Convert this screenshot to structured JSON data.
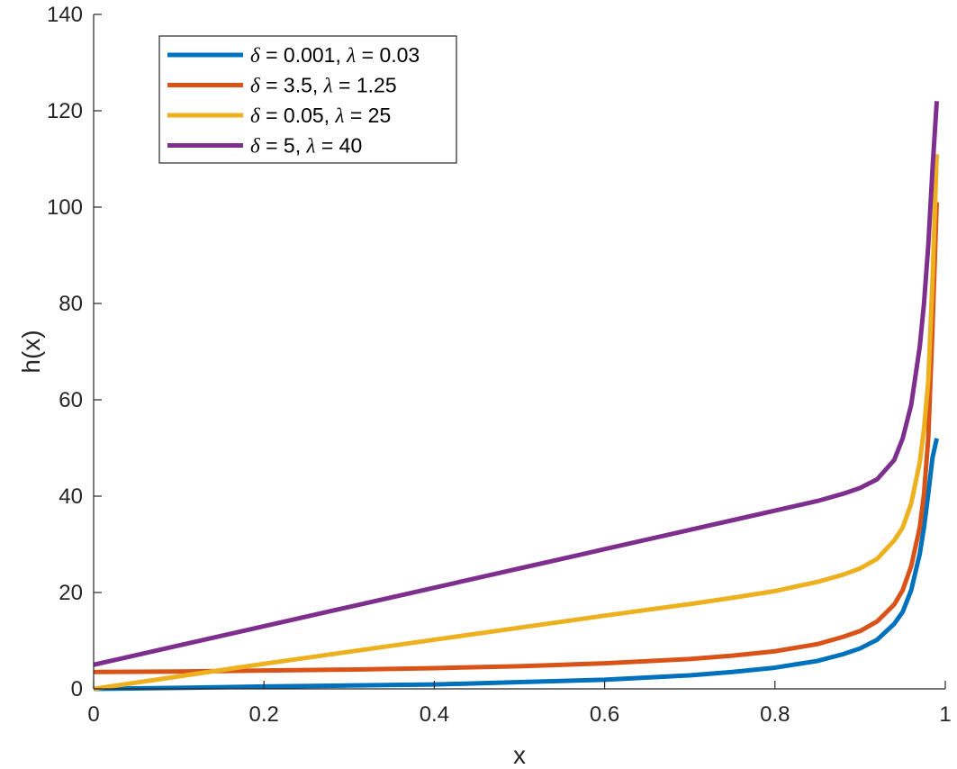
{
  "chart_data": {
    "type": "line",
    "xlabel": "x",
    "ylabel": "h(x)",
    "xlim": [
      0,
      1
    ],
    "ylim": [
      0,
      140
    ],
    "xticks": [
      0,
      0.2,
      0.4,
      0.6,
      0.8,
      1
    ],
    "xtick_labels": [
      "0",
      "0.2",
      "0.4",
      "0.6",
      "0.8",
      "1"
    ],
    "yticks": [
      0,
      20,
      40,
      60,
      80,
      100,
      120,
      140
    ],
    "ytick_labels": [
      "0",
      "20",
      "40",
      "60",
      "80",
      "100",
      "120",
      "140"
    ],
    "grid": false,
    "legend_position": "top-left",
    "series": [
      {
        "name": "δ = 0.001, λ = 0.03",
        "name_parts": [
          "δ",
          " = 0.001, ",
          "λ",
          " = 0.03"
        ],
        "color": "#0072BD",
        "x": [
          0,
          0.1,
          0.2,
          0.3,
          0.4,
          0.5,
          0.6,
          0.7,
          0.75,
          0.8,
          0.85,
          0.88,
          0.9,
          0.92,
          0.94,
          0.95,
          0.96,
          0.97,
          0.975,
          0.98,
          0.985,
          0.99
        ],
        "y": [
          0.0,
          0.2,
          0.5,
          0.7,
          0.9,
          1.4,
          1.9,
          2.8,
          3.5,
          4.4,
          5.8,
          7.2,
          8.4,
          10.2,
          13.5,
          16.0,
          20.5,
          28.0,
          33.5,
          40.5,
          48.0,
          52.0
        ]
      },
      {
        "name": "δ = 3.5, λ = 1.25",
        "name_parts": [
          "δ",
          " = 3.5, ",
          "λ",
          " = 1.25"
        ],
        "color": "#D95319",
        "x": [
          0,
          0.1,
          0.2,
          0.3,
          0.4,
          0.5,
          0.6,
          0.7,
          0.75,
          0.8,
          0.85,
          0.88,
          0.9,
          0.92,
          0.94,
          0.95,
          0.96,
          0.97,
          0.975,
          0.98,
          0.985,
          0.99
        ],
        "y": [
          3.5,
          3.6,
          3.8,
          4.0,
          4.3,
          4.7,
          5.3,
          6.2,
          6.9,
          7.8,
          9.3,
          10.8,
          12.0,
          14.0,
          17.5,
          20.5,
          25.5,
          33.5,
          40.5,
          52.0,
          75.0,
          101.0
        ]
      },
      {
        "name": "δ = 0.05, λ = 25",
        "name_parts": [
          "δ",
          " = 0.05, ",
          "λ",
          " = 25"
        ],
        "color": "#EDB120",
        "x": [
          0,
          0.1,
          0.2,
          0.3,
          0.4,
          0.5,
          0.6,
          0.7,
          0.75,
          0.8,
          0.85,
          0.88,
          0.9,
          0.92,
          0.94,
          0.95,
          0.96,
          0.97,
          0.975,
          0.98,
          0.985,
          0.99
        ],
        "y": [
          0.0,
          2.6,
          5.2,
          7.7,
          10.2,
          12.7,
          15.2,
          17.6,
          18.9,
          20.3,
          22.2,
          23.7,
          25.0,
          27.0,
          30.8,
          33.5,
          38.5,
          47.0,
          54.0,
          64.0,
          85.0,
          111.0
        ]
      },
      {
        "name": "δ = 5, λ = 40",
        "name_parts": [
          "δ",
          " = 5, ",
          "λ",
          " = 40"
        ],
        "color": "#7E2F8E",
        "x": [
          0,
          0.1,
          0.2,
          0.3,
          0.4,
          0.5,
          0.6,
          0.7,
          0.75,
          0.8,
          0.85,
          0.88,
          0.9,
          0.92,
          0.94,
          0.95,
          0.96,
          0.97,
          0.975,
          0.98,
          0.985,
          0.99
        ],
        "y": [
          5.0,
          9.0,
          13.0,
          17.0,
          21.0,
          25.0,
          29.0,
          33.0,
          35.0,
          37.0,
          39.0,
          40.5,
          41.7,
          43.5,
          47.5,
          52.0,
          59.0,
          71.0,
          80.0,
          92.0,
          108.0,
          122.0
        ]
      }
    ]
  }
}
